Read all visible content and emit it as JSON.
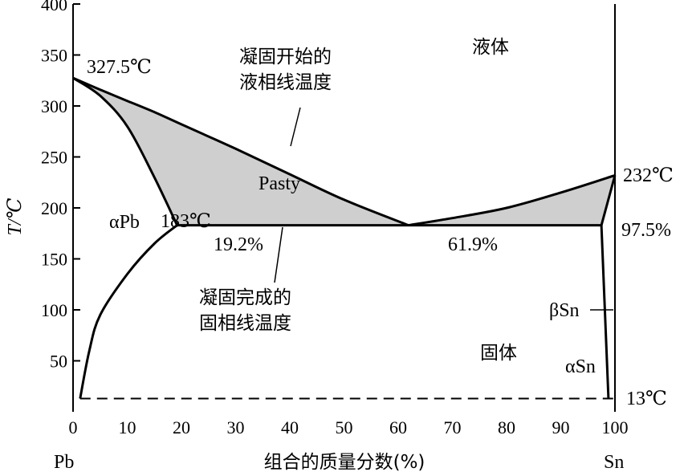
{
  "chart_data": {
    "type": "phase-diagram",
    "title": "",
    "xlabel": "组合的质量分数(%)",
    "ylabel": "T/℃",
    "xlim": [
      0,
      100
    ],
    "ylim": [
      0,
      400
    ],
    "x_ticks": [
      "0",
      "10",
      "20",
      "30",
      "40",
      "50",
      "60",
      "70",
      "80",
      "90",
      "100"
    ],
    "y_ticks": [
      "50",
      "100",
      "150",
      "200",
      "250",
      "300",
      "350",
      "400"
    ],
    "x_end_labels": {
      "left": "Pb",
      "right": "Sn"
    },
    "curves": {
      "liquidus_left": [
        [
          0,
          327.5
        ],
        [
          5,
          316
        ],
        [
          10,
          305
        ],
        [
          15,
          294
        ],
        [
          20,
          282
        ],
        [
          30,
          258
        ],
        [
          40,
          233
        ],
        [
          50,
          208
        ],
        [
          61.9,
          183
        ]
      ],
      "liquidus_right": [
        [
          61.9,
          183
        ],
        [
          70,
          190
        ],
        [
          80,
          200
        ],
        [
          90,
          215
        ],
        [
          100,
          232
        ]
      ],
      "solidus_left": [
        [
          0,
          327.5
        ],
        [
          5,
          310
        ],
        [
          10,
          280
        ],
        [
          15,
          230
        ],
        [
          19.2,
          183
        ]
      ],
      "solidus_right": [
        [
          97.5,
          183
        ],
        [
          100,
          232
        ]
      ],
      "eutectic_line": [
        [
          19.2,
          183
        ],
        [
          97.5,
          183
        ]
      ],
      "solvus_left": [
        [
          1.3,
          13
        ],
        [
          3,
          60
        ],
        [
          5,
          95
        ],
        [
          10,
          135
        ],
        [
          15,
          165
        ],
        [
          19.2,
          183
        ]
      ],
      "solvus_right": [
        [
          97.5,
          183
        ],
        [
          98.8,
          13
        ]
      ],
      "allotropic_line": [
        [
          1.3,
          13
        ],
        [
          100,
          13
        ]
      ]
    },
    "annotations": [
      {
        "text": "327.5℃",
        "x": 0,
        "y": 327.5
      },
      {
        "text": "183℃",
        "x": 19.2,
        "y": 183
      },
      {
        "text": "19.2%",
        "x": 19.2,
        "y": 183
      },
      {
        "text": "61.9%",
        "x": 61.9,
        "y": 183
      },
      {
        "text": "97.5%",
        "x": 97.5,
        "y": 183
      },
      {
        "text": "232℃",
        "x": 100,
        "y": 232
      },
      {
        "text": "13℃",
        "x": 100,
        "y": 13
      },
      {
        "text": "Pasty"
      },
      {
        "text": "αPb"
      },
      {
        "text": "βSn"
      },
      {
        "text": "αSn"
      },
      {
        "text": "液体"
      },
      {
        "text": "固体"
      },
      {
        "text": "凝固开始的",
        "text2": "液相线温度"
      },
      {
        "text": "凝固完成的",
        "text2": "固相线温度"
      }
    ],
    "colors": {
      "pasty_fill": "#cfcfcf",
      "line": "#000000"
    }
  }
}
